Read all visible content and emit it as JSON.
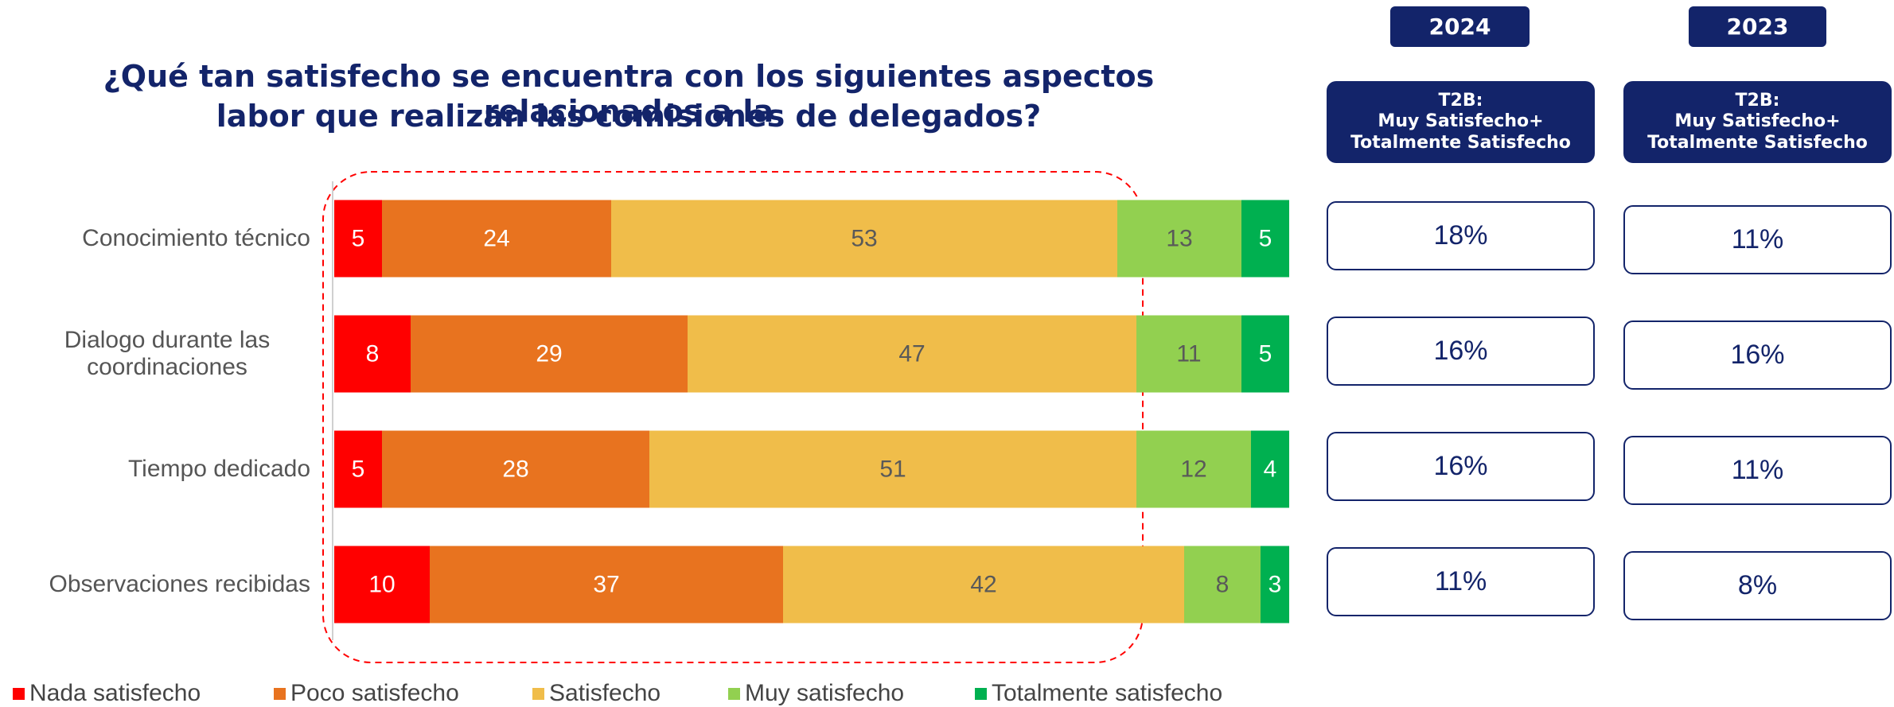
{
  "chart_data": {
    "type": "stacked-bar-horizontal",
    "title": [
      "¿Qué tan satisfecho se encuentra con los siguientes aspectos relacionados a la",
      "labor que realizan las comisiones de delegados?"
    ],
    "categories": [
      "Conocimiento técnico",
      "Dialogo durante las coordinaciones",
      "Tiempo dedicado",
      "Observaciones recibidas"
    ],
    "xlim": [
      0,
      100
    ],
    "series": [
      {
        "name": "Nada satisfecho",
        "color": "#ff0000",
        "values": [
          5,
          8,
          5,
          10
        ]
      },
      {
        "name": "Poco satisfecho",
        "color": "#e8731f",
        "values": [
          24,
          29,
          28,
          37
        ]
      },
      {
        "name": "Satisfecho",
        "color": "#f0bd4a",
        "values": [
          53,
          47,
          51,
          42
        ]
      },
      {
        "name": "Muy satisfecho",
        "color": "#92d050",
        "values": [
          13,
          11,
          12,
          8
        ]
      },
      {
        "name": "Totalmente satisfecho",
        "color": "#00b050",
        "values": [
          5,
          5,
          4,
          3
        ]
      }
    ]
  },
  "panels": [
    {
      "year": "2024",
      "header": [
        "T2B:",
        "Muy Satisfecho+",
        "Totalmente Satisfecho"
      ],
      "values": [
        18,
        16,
        16,
        11
      ],
      "value_labels": [
        "18%",
        "16%",
        "16%",
        "11%"
      ]
    },
    {
      "year": "2023",
      "header": [
        "T2B:",
        "Muy Satisfecho+",
        "Totalmente Satisfecho"
      ],
      "values": [
        11,
        16,
        11,
        8
      ],
      "value_labels": [
        "11%",
        "16%",
        "11%",
        "8%"
      ]
    }
  ]
}
